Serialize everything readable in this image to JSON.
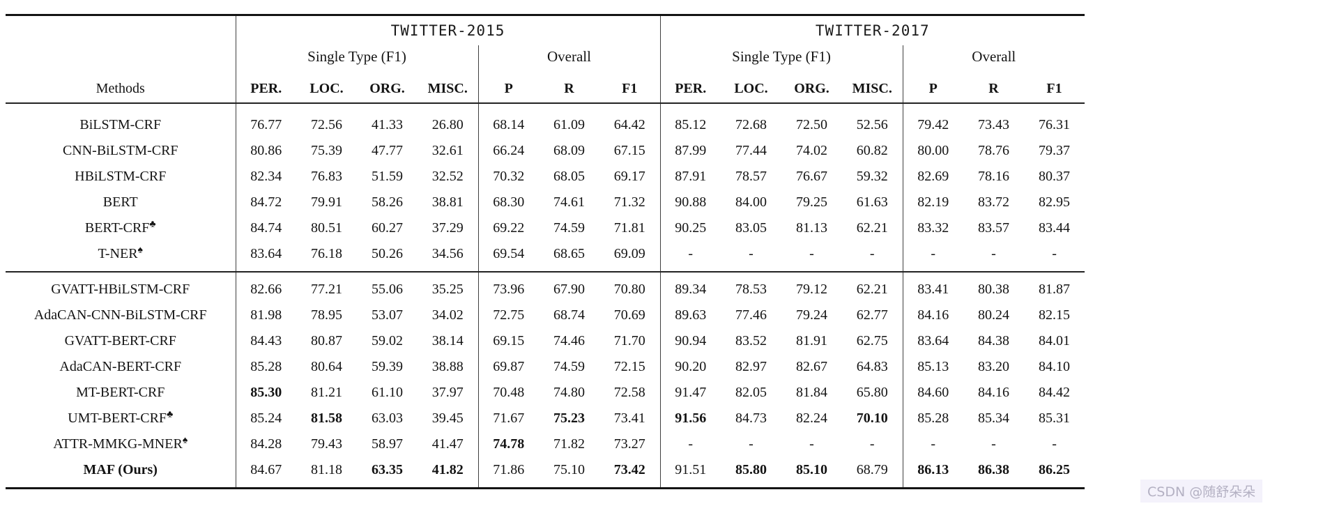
{
  "table": {
    "methods_label": "Methods",
    "sections": [
      {
        "title": "TWITTER-2015",
        "groups": [
          {
            "label": "Single Type (F1)",
            "columns": [
              "PER.",
              "LOC.",
              "ORG.",
              "MISC."
            ]
          },
          {
            "label": "Overall",
            "columns": [
              "P",
              "R",
              "F1"
            ]
          }
        ]
      },
      {
        "title": "TWITTER-2017",
        "groups": [
          {
            "label": "Single Type (F1)",
            "columns": [
              "PER.",
              "LOC.",
              "ORG.",
              "MISC."
            ]
          },
          {
            "label": "Overall",
            "columns": [
              "P",
              "R",
              "F1"
            ]
          }
        ]
      }
    ],
    "row_groups": [
      {
        "rows": [
          {
            "method": "BiLSTM-CRF",
            "mark": "",
            "bold_method": false,
            "bold_cols": [],
            "values": [
              "76.77",
              "72.56",
              "41.33",
              "26.80",
              "68.14",
              "61.09",
              "64.42",
              "85.12",
              "72.68",
              "72.50",
              "52.56",
              "79.42",
              "73.43",
              "76.31"
            ]
          },
          {
            "method": "CNN-BiLSTM-CRF",
            "mark": "",
            "bold_method": false,
            "bold_cols": [],
            "values": [
              "80.86",
              "75.39",
              "47.77",
              "32.61",
              "66.24",
              "68.09",
              "67.15",
              "87.99",
              "77.44",
              "74.02",
              "60.82",
              "80.00",
              "78.76",
              "79.37"
            ]
          },
          {
            "method": "HBiLSTM-CRF",
            "mark": "",
            "bold_method": false,
            "bold_cols": [],
            "values": [
              "82.34",
              "76.83",
              "51.59",
              "32.52",
              "70.32",
              "68.05",
              "69.17",
              "87.91",
              "78.57",
              "76.67",
              "59.32",
              "82.69",
              "78.16",
              "80.37"
            ]
          },
          {
            "method": "BERT",
            "mark": "",
            "bold_method": false,
            "bold_cols": [],
            "values": [
              "84.72",
              "79.91",
              "58.26",
              "38.81",
              "68.30",
              "74.61",
              "71.32",
              "90.88",
              "84.00",
              "79.25",
              "61.63",
              "82.19",
              "83.72",
              "82.95"
            ]
          },
          {
            "method": "BERT-CRF",
            "mark": "♣",
            "bold_method": false,
            "bold_cols": [],
            "values": [
              "84.74",
              "80.51",
              "60.27",
              "37.29",
              "69.22",
              "74.59",
              "71.81",
              "90.25",
              "83.05",
              "81.13",
              "62.21",
              "83.32",
              "83.57",
              "83.44"
            ]
          },
          {
            "method": "T-NER",
            "mark": "♠",
            "bold_method": false,
            "bold_cols": [],
            "values": [
              "83.64",
              "76.18",
              "50.26",
              "34.56",
              "69.54",
              "68.65",
              "69.09",
              "-",
              "-",
              "-",
              "-",
              "-",
              "-",
              "-"
            ]
          }
        ]
      },
      {
        "rows": [
          {
            "method": "GVATT-HBiLSTM-CRF",
            "mark": "",
            "bold_method": false,
            "bold_cols": [],
            "values": [
              "82.66",
              "77.21",
              "55.06",
              "35.25",
              "73.96",
              "67.90",
              "70.80",
              "89.34",
              "78.53",
              "79.12",
              "62.21",
              "83.41",
              "80.38",
              "81.87"
            ]
          },
          {
            "method": "AdaCAN-CNN-BiLSTM-CRF",
            "mark": "",
            "bold_method": false,
            "bold_cols": [],
            "values": [
              "81.98",
              "78.95",
              "53.07",
              "34.02",
              "72.75",
              "68.74",
              "70.69",
              "89.63",
              "77.46",
              "79.24",
              "62.77",
              "84.16",
              "80.24",
              "82.15"
            ]
          },
          {
            "method": "GVATT-BERT-CRF",
            "mark": "",
            "bold_method": false,
            "bold_cols": [],
            "values": [
              "84.43",
              "80.87",
              "59.02",
              "38.14",
              "69.15",
              "74.46",
              "71.70",
              "90.94",
              "83.52",
              "81.91",
              "62.75",
              "83.64",
              "84.38",
              "84.01"
            ]
          },
          {
            "method": "AdaCAN-BERT-CRF",
            "mark": "",
            "bold_method": false,
            "bold_cols": [],
            "values": [
              "85.28",
              "80.64",
              "59.39",
              "38.88",
              "69.87",
              "74.59",
              "72.15",
              "90.20",
              "82.97",
              "82.67",
              "64.83",
              "85.13",
              "83.20",
              "84.10"
            ]
          },
          {
            "method": "MT-BERT-CRF",
            "mark": "",
            "bold_method": false,
            "bold_cols": [
              0
            ],
            "values": [
              "85.30",
              "81.21",
              "61.10",
              "37.97",
              "70.48",
              "74.80",
              "72.58",
              "91.47",
              "82.05",
              "81.84",
              "65.80",
              "84.60",
              "84.16",
              "84.42"
            ]
          },
          {
            "method": "UMT-BERT-CRF",
            "mark": "♣",
            "bold_method": false,
            "bold_cols": [
              1,
              5,
              7,
              10
            ],
            "values": [
              "85.24",
              "81.58",
              "63.03",
              "39.45",
              "71.67",
              "75.23",
              "73.41",
              "91.56",
              "84.73",
              "82.24",
              "70.10",
              "85.28",
              "85.34",
              "85.31"
            ]
          },
          {
            "method": "ATTR-MMKG-MNER",
            "mark": "♠",
            "bold_method": false,
            "bold_cols": [
              4
            ],
            "values": [
              "84.28",
              "79.43",
              "58.97",
              "41.47",
              "74.78",
              "71.82",
              "73.27",
              "-",
              "-",
              "-",
              "-",
              "-",
              "-",
              "-"
            ]
          },
          {
            "method": "MAF (Ours)",
            "mark": "",
            "bold_method": true,
            "bold_cols": [
              2,
              3,
              6,
              8,
              9,
              11,
              12,
              13
            ],
            "values": [
              "84.67",
              "81.18",
              "63.35",
              "41.82",
              "71.86",
              "75.10",
              "73.42",
              "91.51",
              "85.80",
              "85.10",
              "68.79",
              "86.13",
              "86.38",
              "86.25"
            ]
          }
        ]
      }
    ]
  },
  "watermark": {
    "text": "CSDN @随舒朵朵"
  }
}
